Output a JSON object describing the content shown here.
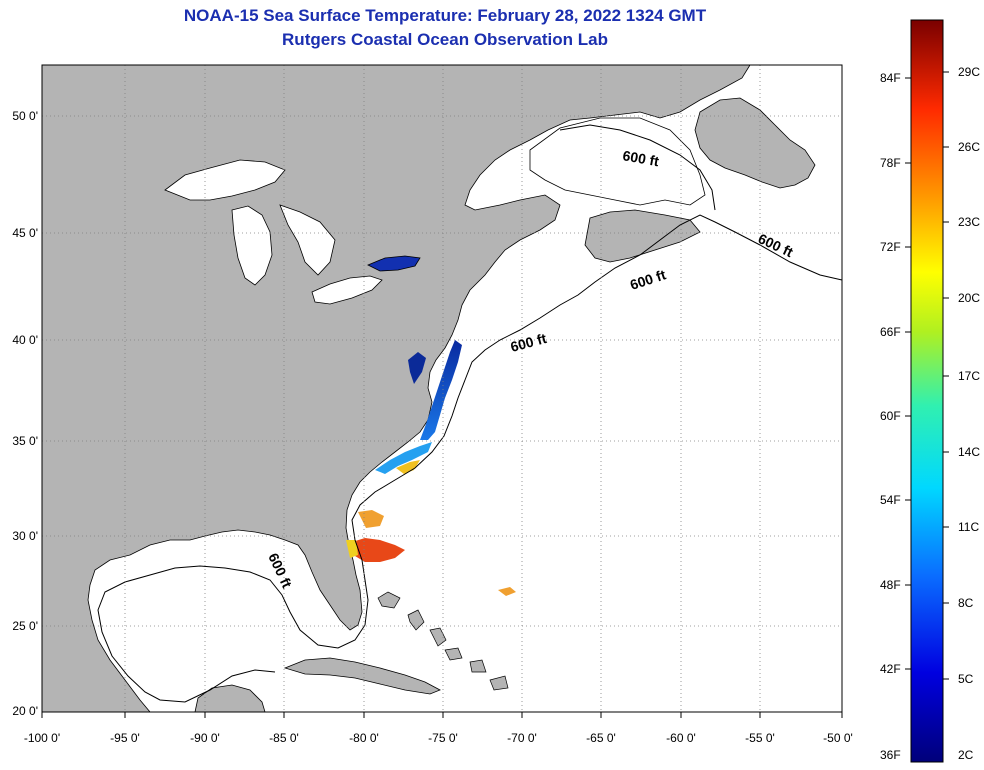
{
  "title_line1": "NOAA-15 Sea Surface Temperature:  February 28, 2022 1324 GMT",
  "title_line2": "Rutgers Coastal Ocean Observation Lab",
  "lat_labels": [
    "50 0'",
    "45 0'",
    "40 0'",
    "35 0'",
    "30 0'",
    "25 0'",
    "20 0'"
  ],
  "lon_labels": [
    "-100 0'",
    "-95 0'",
    "-90 0'",
    "-85 0'",
    "-80 0'",
    "-75 0'",
    "-70 0'",
    "-65 0'",
    "-60 0'",
    "-55 0'",
    "-50 0'"
  ],
  "contour_labels": [
    "600 ft",
    "600 ft",
    "600 ft",
    "600 ft",
    "600 ft"
  ],
  "colorbar": {
    "fahrenheit": [
      "84F",
      "78F",
      "72F",
      "66F",
      "60F",
      "54F",
      "48F",
      "42F",
      "36F"
    ],
    "celsius": [
      "29C",
      "26C",
      "23C",
      "20C",
      "17C",
      "14C",
      "11C",
      "8C",
      "5C",
      "2C"
    ]
  },
  "colors": {
    "land": "#b4b4b4",
    "ocean": "#ffffff",
    "title": "#1b2fb0",
    "grid": "#808080"
  }
}
